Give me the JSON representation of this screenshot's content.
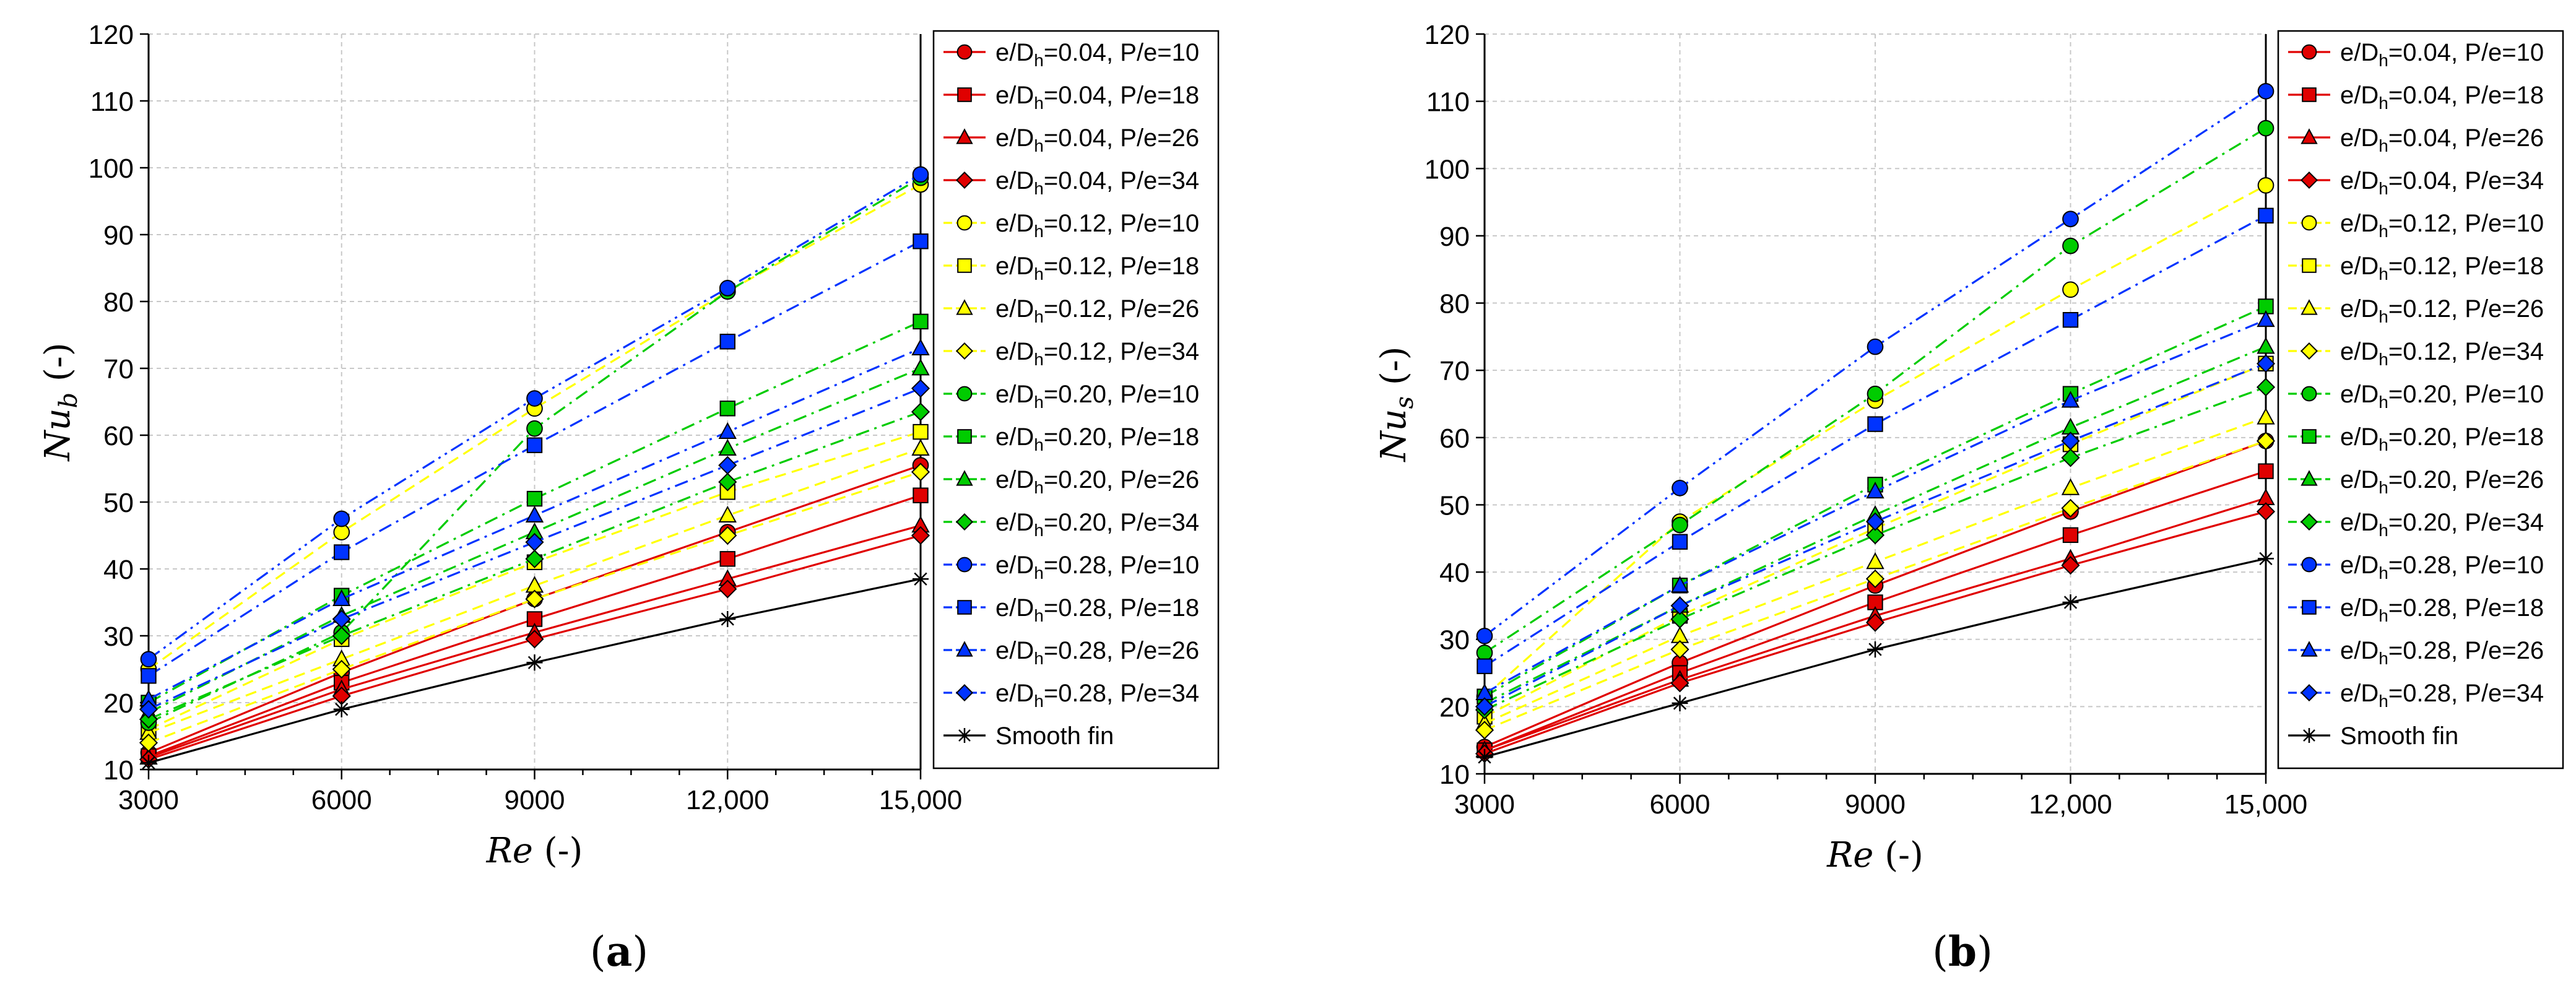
{
  "chart_data": [
    {
      "type": "line",
      "panel_label": "(a)",
      "ylabel_symbol": "Nu",
      "ylabel_sub": "b",
      "ylabel_unit": "(-)",
      "xlabel_symbol": "Re",
      "xlabel_unit": "(-)",
      "x": [
        3000,
        6000,
        9000,
        12000,
        15000
      ],
      "x_tick_labels": [
        "3000",
        "6000",
        "9000",
        "12,000",
        "15,000"
      ],
      "xlim": [
        3000,
        15000
      ],
      "ylim": [
        10,
        120
      ],
      "y_ticks": [
        10,
        20,
        30,
        40,
        50,
        60,
        70,
        80,
        90,
        100,
        110,
        120
      ],
      "grid": true,
      "legend_position": "right",
      "series": [
        {
          "name": "e/Dh=0.04, P/e=10",
          "ratio": "0.04",
          "pe": "10",
          "color": "#e00000",
          "marker": "circle",
          "dash": "solid",
          "values": [
            12.5,
            24.5,
            35.5,
            45.5,
            55.5
          ]
        },
        {
          "name": "e/Dh=0.04, P/e=18",
          "ratio": "0.04",
          "pe": "18",
          "color": "#e00000",
          "marker": "square",
          "dash": "solid",
          "values": [
            12.0,
            23.0,
            32.5,
            41.5,
            51.0
          ]
        },
        {
          "name": "e/Dh=0.04, P/e=26",
          "ratio": "0.04",
          "pe": "26",
          "color": "#e00000",
          "marker": "triangle",
          "dash": "solid",
          "values": [
            11.8,
            22.0,
            30.5,
            38.5,
            46.5
          ]
        },
        {
          "name": "e/Dh=0.04, P/e=34",
          "ratio": "0.04",
          "pe": "34",
          "color": "#e00000",
          "marker": "diamond",
          "dash": "solid",
          "values": [
            11.5,
            21.0,
            29.5,
            37.0,
            45.0
          ]
        },
        {
          "name": "e/Dh=0.12, P/e=10",
          "ratio": "0.12",
          "pe": "10",
          "color": "#ffff00",
          "marker": "circle",
          "dash": "dash",
          "values": [
            25.0,
            45.5,
            64.0,
            81.5,
            97.5
          ]
        },
        {
          "name": "e/Dh=0.12, P/e=18",
          "ratio": "0.12",
          "pe": "18",
          "color": "#ffff00",
          "marker": "square",
          "dash": "dash",
          "values": [
            16.0,
            29.5,
            41.0,
            51.5,
            60.5
          ]
        },
        {
          "name": "e/Dh=0.12, P/e=26",
          "ratio": "0.12",
          "pe": "26",
          "color": "#ffff00",
          "marker": "triangle",
          "dash": "dash",
          "values": [
            15.5,
            26.5,
            37.5,
            48.0,
            58.0
          ]
        },
        {
          "name": "e/Dh=0.12, P/e=34",
          "ratio": "0.12",
          "pe": "34",
          "color": "#ffff00",
          "marker": "diamond",
          "dash": "dash",
          "values": [
            14.0,
            25.0,
            35.5,
            45.0,
            54.5
          ]
        },
        {
          "name": "e/Dh=0.20, P/e=10",
          "ratio": "0.20",
          "pe": "10",
          "color": "#00cc00",
          "marker": "circle",
          "dash": "dashdot",
          "values": [
            17.0,
            30.5,
            61.0,
            81.5,
            98.5
          ]
        },
        {
          "name": "e/Dh=0.20, P/e=18",
          "ratio": "0.20",
          "pe": "18",
          "color": "#00cc00",
          "marker": "square",
          "dash": "dashdot",
          "values": [
            20.0,
            36.0,
            50.5,
            64.0,
            77.0
          ]
        },
        {
          "name": "e/Dh=0.20, P/e=26",
          "ratio": "0.20",
          "pe": "26",
          "color": "#00cc00",
          "marker": "triangle",
          "dash": "dashdot",
          "values": [
            18.5,
            33.0,
            45.5,
            58.0,
            70.0
          ]
        },
        {
          "name": "e/Dh=0.20, P/e=34",
          "ratio": "0.20",
          "pe": "34",
          "color": "#00cc00",
          "marker": "diamond",
          "dash": "dashdot",
          "values": [
            17.5,
            30.0,
            41.5,
            53.0,
            63.5
          ]
        },
        {
          "name": "e/Dh=0.28, P/e=10",
          "ratio": "0.28",
          "pe": "10",
          "color": "#0033ff",
          "marker": "circle",
          "dash": "dashdotdot",
          "values": [
            26.5,
            47.5,
            65.5,
            82.0,
            99.0
          ]
        },
        {
          "name": "e/Dh=0.28, P/e=18",
          "ratio": "0.28",
          "pe": "18",
          "color": "#0033ff",
          "marker": "square",
          "dash": "dashdot",
          "values": [
            24.0,
            42.5,
            58.5,
            74.0,
            89.0
          ]
        },
        {
          "name": "e/Dh=0.28, P/e=26",
          "ratio": "0.28",
          "pe": "26",
          "color": "#0033ff",
          "marker": "triangle",
          "dash": "dashdot",
          "values": [
            20.5,
            35.5,
            48.0,
            60.5,
            73.0
          ]
        },
        {
          "name": "e/Dh=0.28, P/e=34",
          "ratio": "0.28",
          "pe": "34",
          "color": "#0033ff",
          "marker": "diamond",
          "dash": "dashdot",
          "values": [
            19.0,
            32.5,
            44.0,
            55.5,
            67.0
          ]
        },
        {
          "name": "Smooth fin",
          "ratio": "",
          "pe": "",
          "color": "#000000",
          "marker": "star",
          "dash": "solid",
          "values": [
            11.0,
            19.0,
            26.0,
            32.5,
            38.5
          ]
        }
      ]
    },
    {
      "type": "line",
      "panel_label": "(b)",
      "ylabel_symbol": "Nu",
      "ylabel_sub": "s",
      "ylabel_unit": "(-)",
      "xlabel_symbol": "Re",
      "xlabel_unit": "(-)",
      "x": [
        3000,
        6000,
        9000,
        12000,
        15000
      ],
      "x_tick_labels": [
        "3000",
        "6000",
        "9000",
        "12,000",
        "15,000"
      ],
      "xlim": [
        3000,
        15000
      ],
      "ylim": [
        10,
        120
      ],
      "y_ticks": [
        10,
        20,
        30,
        40,
        50,
        60,
        70,
        80,
        90,
        100,
        110,
        120
      ],
      "grid": true,
      "legend_position": "right",
      "series": [
        {
          "name": "e/Dh=0.04, P/e=10",
          "ratio": "0.04",
          "pe": "10",
          "color": "#e00000",
          "marker": "circle",
          "dash": "solid",
          "values": [
            14.0,
            26.5,
            38.0,
            49.0,
            59.5
          ]
        },
        {
          "name": "e/Dh=0.04, P/e=18",
          "ratio": "0.04",
          "pe": "18",
          "color": "#e00000",
          "marker": "square",
          "dash": "solid",
          "values": [
            13.5,
            25.0,
            35.5,
            45.5,
            55.0
          ]
        },
        {
          "name": "e/Dh=0.04, P/e=26",
          "ratio": "0.04",
          "pe": "26",
          "color": "#e00000",
          "marker": "triangle",
          "dash": "solid",
          "values": [
            13.5,
            24.0,
            33.5,
            42.0,
            51.0
          ]
        },
        {
          "name": "e/Dh=0.04, P/e=34",
          "ratio": "0.04",
          "pe": "34",
          "color": "#e00000",
          "marker": "diamond",
          "dash": "solid",
          "values": [
            13.0,
            23.5,
            32.5,
            41.0,
            49.0
          ]
        },
        {
          "name": "e/Dh=0.12, P/e=10",
          "ratio": "0.12",
          "pe": "10",
          "color": "#ffff00",
          "marker": "circle",
          "dash": "dash",
          "values": [
            21.5,
            47.5,
            65.5,
            82.0,
            97.5
          ]
        },
        {
          "name": "e/Dh=0.12, P/e=18",
          "ratio": "0.12",
          "pe": "18",
          "color": "#ffff00",
          "marker": "square",
          "dash": "dash",
          "values": [
            18.5,
            33.5,
            46.5,
            59.0,
            71.0
          ]
        },
        {
          "name": "e/Dh=0.12, P/e=26",
          "ratio": "0.12",
          "pe": "26",
          "color": "#ffff00",
          "marker": "triangle",
          "dash": "dash",
          "values": [
            17.5,
            30.5,
            41.5,
            52.5,
            63.0
          ]
        },
        {
          "name": "e/Dh=0.12, P/e=34",
          "ratio": "0.12",
          "pe": "34",
          "color": "#ffff00",
          "marker": "diamond",
          "dash": "dash",
          "values": [
            16.5,
            28.5,
            39.0,
            49.5,
            59.5
          ]
        },
        {
          "name": "e/Dh=0.20, P/e=10",
          "ratio": "0.20",
          "pe": "10",
          "color": "#00cc00",
          "marker": "circle",
          "dash": "dashdot",
          "values": [
            28.0,
            47.0,
            66.5,
            88.5,
            106.0
          ]
        },
        {
          "name": "e/Dh=0.20, P/e=18",
          "ratio": "0.20",
          "pe": "18",
          "color": "#00cc00",
          "marker": "square",
          "dash": "dashdot",
          "values": [
            21.5,
            38.0,
            53.0,
            66.5,
            79.5
          ]
        },
        {
          "name": "e/Dh=0.20, P/e=26",
          "ratio": "0.20",
          "pe": "26",
          "color": "#00cc00",
          "marker": "triangle",
          "dash": "dashdot",
          "values": [
            20.5,
            35.0,
            48.5,
            61.5,
            73.5
          ]
        },
        {
          "name": "e/Dh=0.20, P/e=34",
          "ratio": "0.20",
          "pe": "34",
          "color": "#00cc00",
          "marker": "diamond",
          "dash": "dashdot",
          "values": [
            19.5,
            33.0,
            45.5,
            57.0,
            67.5
          ]
        },
        {
          "name": "e/Dh=0.28, P/e=10",
          "ratio": "0.28",
          "pe": "10",
          "color": "#0033ff",
          "marker": "circle",
          "dash": "dashdotdot",
          "values": [
            30.5,
            52.5,
            73.5,
            92.5,
            111.5
          ]
        },
        {
          "name": "e/Dh=0.28, P/e=18",
          "ratio": "0.28",
          "pe": "18",
          "color": "#0033ff",
          "marker": "square",
          "dash": "dashdot",
          "values": [
            26.0,
            44.5,
            62.0,
            77.5,
            93.0
          ]
        },
        {
          "name": "e/Dh=0.28, P/e=26",
          "ratio": "0.28",
          "pe": "26",
          "color": "#0033ff",
          "marker": "triangle",
          "dash": "dashdot",
          "values": [
            22.0,
            38.0,
            52.0,
            65.5,
            77.5
          ]
        },
        {
          "name": "e/Dh=0.28, P/e=34",
          "ratio": "0.28",
          "pe": "34",
          "color": "#0033ff",
          "marker": "diamond",
          "dash": "dashdot",
          "values": [
            20.0,
            35.0,
            47.5,
            59.5,
            71.0
          ]
        },
        {
          "name": "Smooth fin",
          "ratio": "",
          "pe": "",
          "color": "#000000",
          "marker": "star",
          "dash": "solid",
          "values": [
            12.5,
            20.5,
            28.5,
            35.5,
            42.0
          ]
        }
      ]
    }
  ],
  "legend_text": {
    "ratio_prefix": "e/D",
    "ratio_sub": "h",
    "ratio_eq": "=",
    "pe_prefix": ", P/e="
  }
}
